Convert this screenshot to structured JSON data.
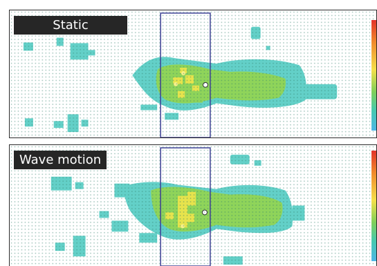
{
  "panels": [
    {
      "label": "Static"
    },
    {
      "label": "Wave motion"
    }
  ],
  "colors": {
    "frame": "#2a2a2a",
    "label_background": "#262626",
    "label_text": "#ffffff",
    "highlight_box": "#3b3f93",
    "heat_low": "#4db6e6",
    "heat_mid": "#7fcf5a",
    "heat_high": "#f4e04a",
    "heat_max": "#e2322a"
  }
}
